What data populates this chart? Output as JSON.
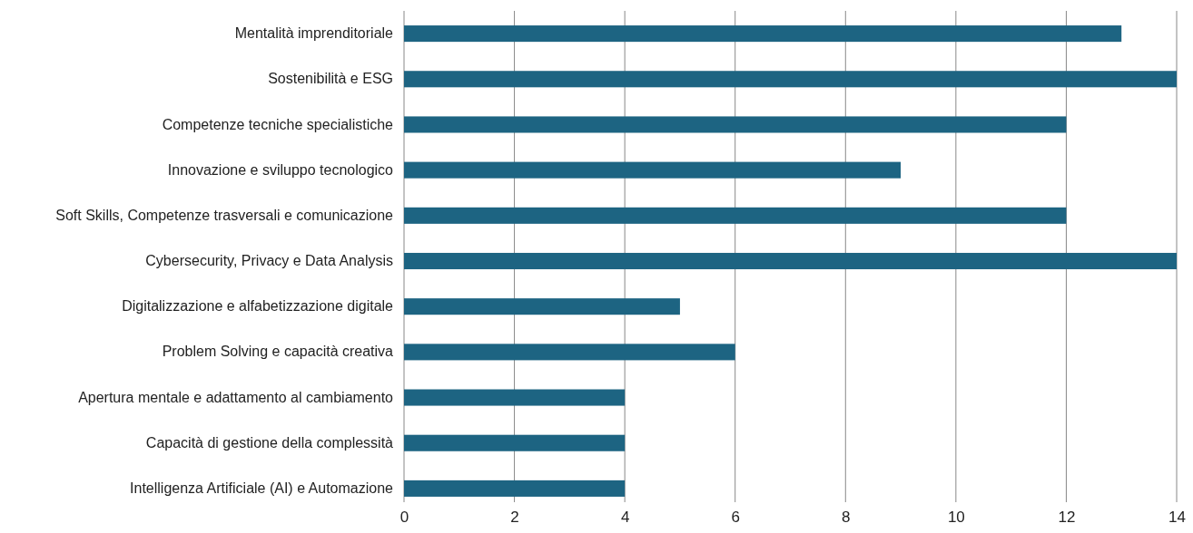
{
  "chart_data": {
    "type": "bar",
    "orientation": "horizontal",
    "categories": [
      "Mentalità imprenditoriale",
      "Sostenibilità e ESG",
      "Competenze tecniche specialistiche",
      "Innovazione e sviluppo tecnologico",
      "Soft Skills, Competenze trasversali e comunicazione",
      "Cybersecurity, Privacy e Data Analysis",
      "Digitalizzazione e alfabetizzazione digitale",
      "Problem Solving e capacità creativa",
      "Apertura mentale e adattamento al cambiamento",
      "Capacità di gestione della complessità",
      "Intelligenza Artificiale (AI) e Automazione"
    ],
    "values": [
      13,
      14,
      12,
      9,
      12,
      14,
      5,
      6,
      4,
      4,
      4
    ],
    "color": "#1d6482",
    "xlim": [
      0,
      14
    ],
    "xticks": [
      0,
      2,
      4,
      6,
      8,
      10,
      12,
      14
    ],
    "grid": "x"
  }
}
